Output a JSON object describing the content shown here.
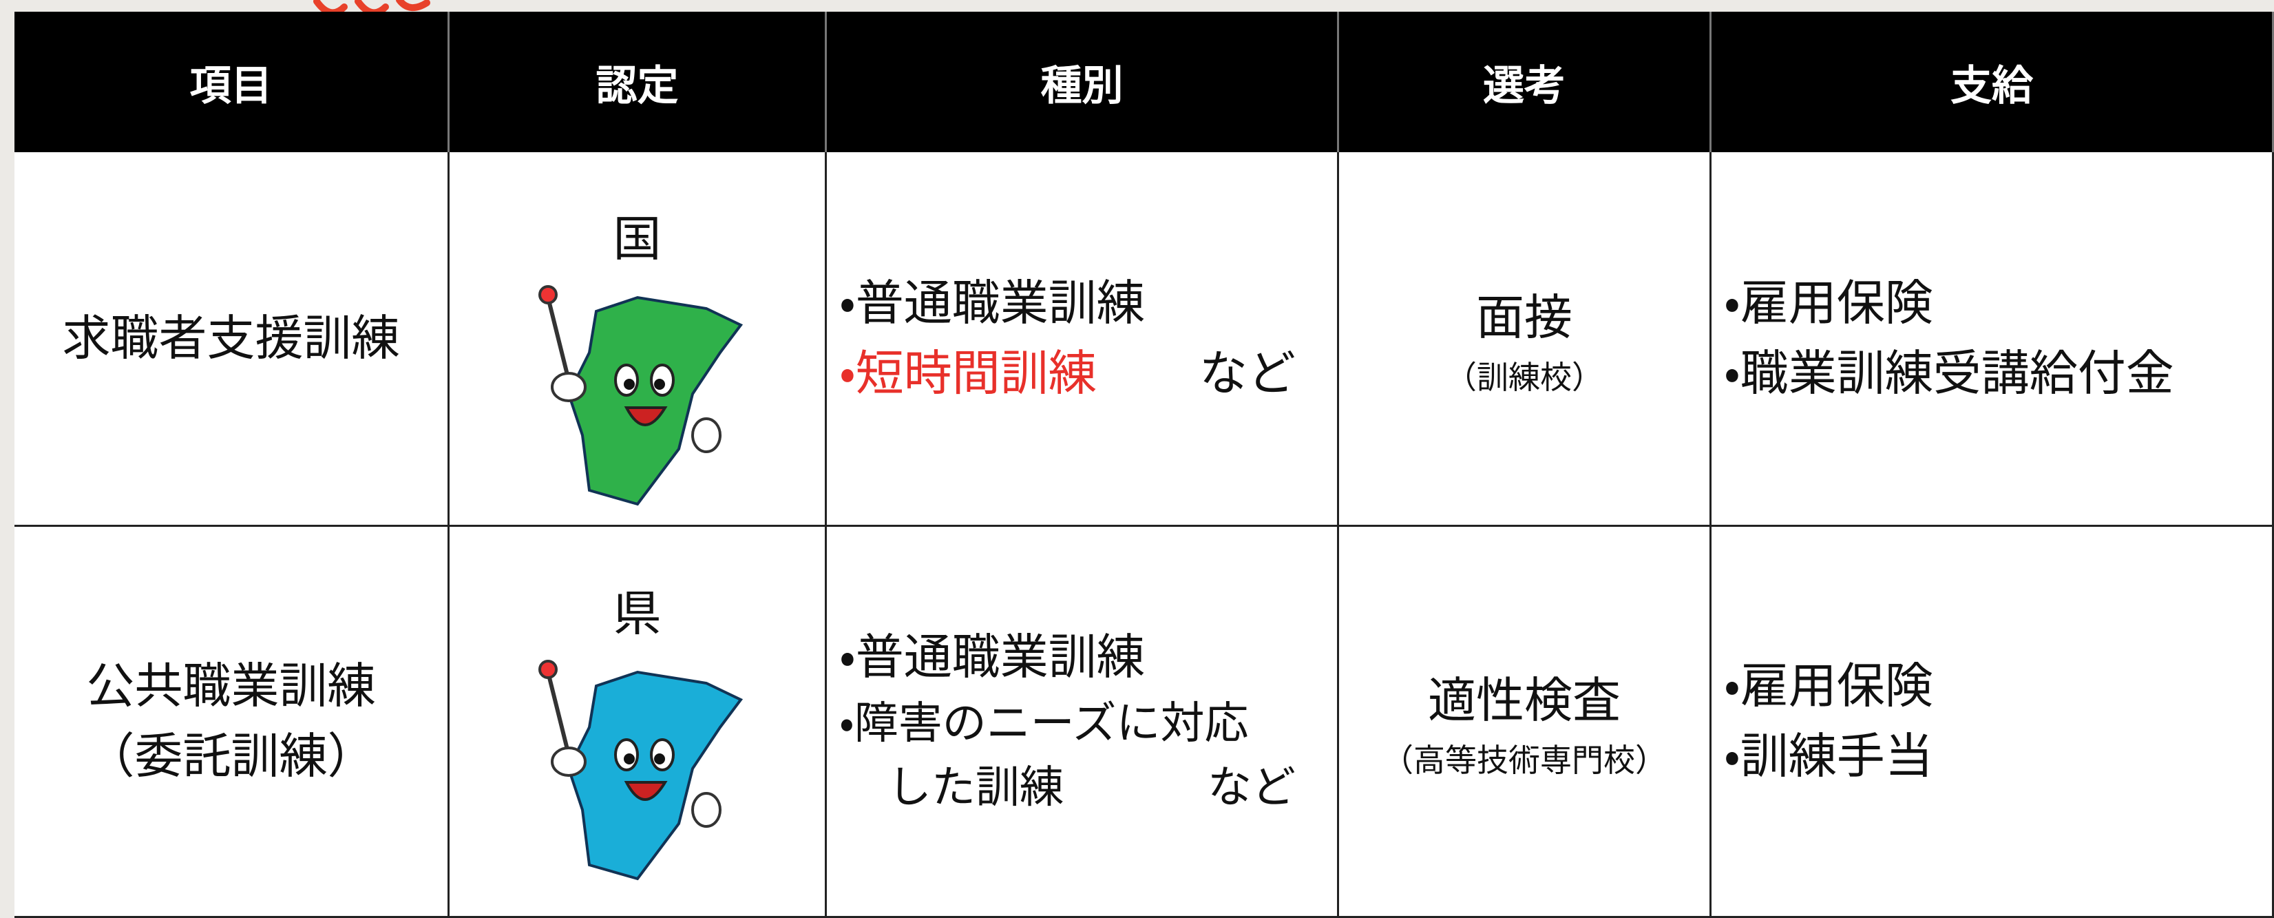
{
  "header": {
    "columns": [
      "項目",
      "認定",
      "種別",
      "選考",
      "支給"
    ]
  },
  "table": {
    "rows": [
      {
        "item": [
          "求職者支援訓練"
        ],
        "certification": "国",
        "mascot_color": "#2fb14a",
        "types": [
          {
            "lines": [
              "・普通職業訓練"
            ]
          },
          {
            "lines": [
              "・短時間訓練"
            ],
            "color": "#e8302a"
          }
        ],
        "types_suffix": "など",
        "selection": "面接",
        "selection_note": "（訓練校）",
        "benefits": [
          "・雇用保険",
          "・職業訓練受講給付金"
        ]
      },
      {
        "item": [
          "公共職業訓練",
          "（委託訓練）"
        ],
        "certification": "県",
        "mascot_color": "#1aaed8",
        "types": [
          {
            "lines": [
              "・普通職業訓練"
            ]
          },
          {
            "lines": [
              "・障害のニーズに対応",
              "した訓練"
            ]
          }
        ],
        "types_suffix": "など",
        "selection": "適性検査",
        "selection_note": "（高等技術専門校）",
        "benefits": [
          "・雇用保険",
          "・訓練手当"
        ]
      }
    ]
  }
}
